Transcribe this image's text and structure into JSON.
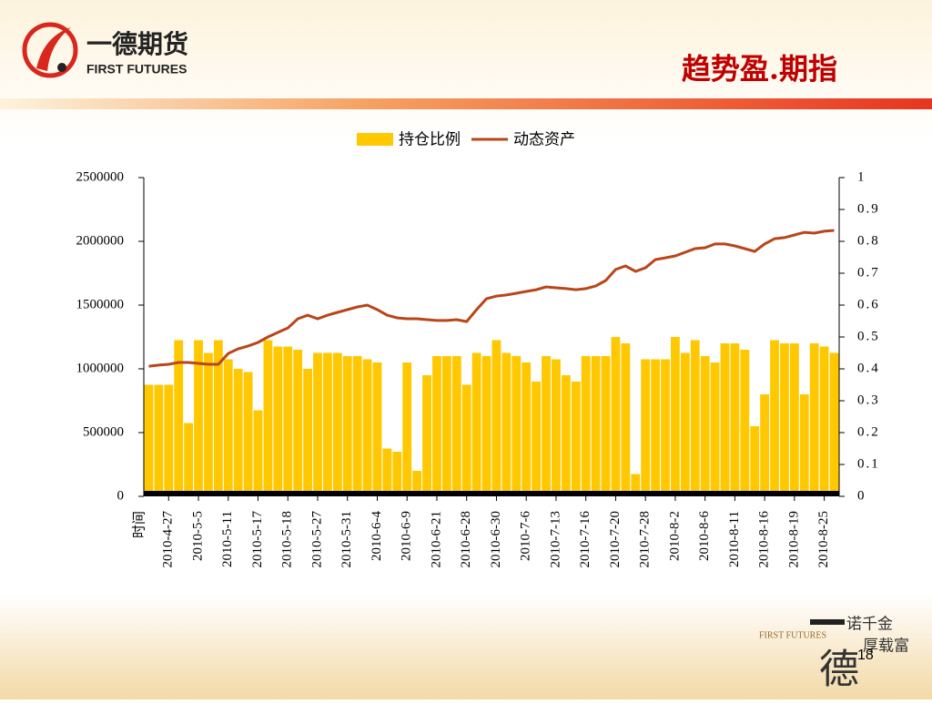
{
  "header": {
    "brand": "一德期货",
    "brand_en": "FIRST FUTURES",
    "title": "趋势盈.期指"
  },
  "chart_data": {
    "type": "combo",
    "x_label": "时间",
    "categories": [
      null,
      null,
      "2010-4-27",
      null,
      null,
      "2010-5-5",
      null,
      null,
      "2010-5-11",
      null,
      null,
      "2010-5-17",
      null,
      null,
      "2010-5-18",
      null,
      null,
      "2010-5-27",
      null,
      null,
      "2010-5-31",
      null,
      null,
      "2010-6-4",
      null,
      null,
      "2010-6-9",
      null,
      null,
      "2010-6-21",
      null,
      null,
      "2010-6-28",
      null,
      null,
      "2010-6-30",
      null,
      null,
      "2010-7-6",
      null,
      null,
      "2010-7-13",
      null,
      null,
      "2010-7-16",
      null,
      null,
      "2010-7-20",
      null,
      null,
      "2010-7-28",
      null,
      null,
      "2010-8-2",
      null,
      null,
      "2010-8-6",
      null,
      null,
      "2010-8-11",
      null,
      null,
      "2010-8-16",
      null,
      null,
      "2010-8-19",
      null,
      null,
      "2010-8-25",
      null
    ],
    "series": [
      {
        "name": "持仓比例",
        "type": "bar",
        "axis": "y2",
        "color": "#ffc800",
        "values": [
          0.35,
          0.35,
          0.35,
          0.49,
          0.23,
          0.49,
          0.45,
          0.49,
          0.43,
          0.4,
          0.39,
          0.27,
          0.49,
          0.47,
          0.47,
          0.46,
          0.4,
          0.45,
          0.45,
          0.45,
          0.44,
          0.44,
          0.43,
          0.42,
          0.15,
          0.14,
          0.42,
          0.08,
          0.38,
          0.44,
          0.44,
          0.44,
          0.35,
          0.45,
          0.44,
          0.49,
          0.45,
          0.44,
          0.42,
          0.36,
          0.44,
          0.43,
          0.38,
          0.36,
          0.44,
          0.44,
          0.44,
          0.5,
          0.48,
          0.07,
          0.43,
          0.43,
          0.43,
          0.5,
          0.45,
          0.49,
          0.44,
          0.42,
          0.48,
          0.48,
          0.46,
          0.22,
          0.32,
          0.49,
          0.48,
          0.48,
          0.32,
          0.48,
          0.47,
          0.45
        ]
      },
      {
        "name": "动态资产",
        "type": "line",
        "color": "#b8461a",
        "values": [
          1021000,
          1029000,
          1036000,
          1050000,
          1050000,
          1043000,
          1036000,
          1036000,
          1121000,
          1157000,
          1179000,
          1207000,
          1250000,
          1286000,
          1321000,
          1393000,
          1421000,
          1393000,
          1421000,
          1443000,
          1464000,
          1486000,
          1500000,
          1464000,
          1421000,
          1400000,
          1393000,
          1393000,
          1386000,
          1379000,
          1379000,
          1386000,
          1371000,
          1464000,
          1550000,
          1571000,
          1579000,
          1593000,
          1607000,
          1621000,
          1643000,
          1636000,
          1629000,
          1621000,
          1629000,
          1650000,
          1693000,
          1779000,
          1807000,
          1764000,
          1793000,
          1857000,
          1871000,
          1886000,
          1914000,
          1943000,
          1950000,
          1979000,
          1979000,
          1964000,
          1943000,
          1921000,
          1979000,
          2021000,
          2029000,
          2050000,
          2071000,
          2064000,
          2079000,
          2086000
        ]
      }
    ],
    "ylim": [
      0,
      2500000
    ],
    "yticks": [
      0,
      500000,
      1000000,
      1500000,
      2000000,
      2500000
    ],
    "y2lim": [
      0,
      1
    ],
    "y2ticks": [
      0,
      0.1,
      0.2,
      0.3,
      0.4,
      0.5,
      0.6,
      0.7,
      0.8,
      0.9,
      1
    ],
    "legend": "top"
  },
  "footer": {
    "motto1": "诺千金",
    "motto2": "厚载富",
    "brand_en": "FIRST FUTURES",
    "mark": "德",
    "page": "18"
  }
}
